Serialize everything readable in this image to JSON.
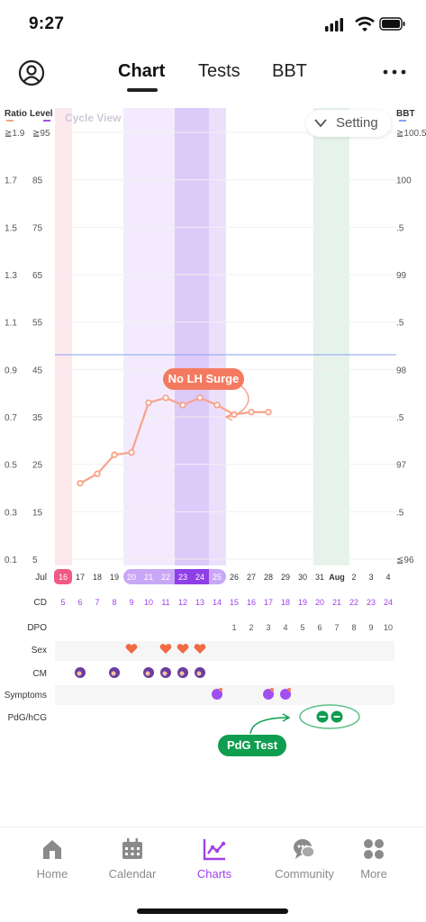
{
  "status": {
    "time": "9:27"
  },
  "tabs": [
    {
      "label": "Chart",
      "active": true
    },
    {
      "label": "Tests",
      "active": false
    },
    {
      "label": "BBT",
      "active": false
    }
  ],
  "chart": {
    "cycle_view_label": "Cycle View",
    "setting_label": "Setting",
    "ratio_label": "Ratio",
    "level_label": "Level",
    "bbt_label": "BBT",
    "ratio_ticks": [
      "≧1.9",
      "1.7",
      "1.5",
      "1.3",
      "1.1",
      "0.9",
      "0.7",
      "0.5",
      "0.3",
      "0.1"
    ],
    "level_ticks": [
      "≧95",
      "85",
      "75",
      "65",
      "55",
      "45",
      "35",
      "25",
      "15",
      "5"
    ],
    "bbt_ticks": [
      "≧100.5",
      "100",
      ".5",
      "99",
      ".5",
      "98",
      ".5",
      "97",
      ".5",
      "≦96"
    ],
    "colors": {
      "ratio": "#f7a38a",
      "level": "#a050f0",
      "bbt": "#8aa0f0",
      "accent": "#a040e8",
      "lh_surge_badge": "#f47a5f",
      "pdg_badge": "#0f9d50"
    },
    "no_lh_surge_label": "No LH Surge",
    "pdg_test_label": "PdG Test"
  },
  "chart_data": {
    "type": "line",
    "title": "",
    "xlabel": "",
    "ylabel": "Level",
    "ylim": [
      5,
      95
    ],
    "x": [
      "Jul 17",
      "Jul 18",
      "Jul 19",
      "Jul 20",
      "Jul 21",
      "Jul 22",
      "Jul 23",
      "Jul 24",
      "Jul 25",
      "Jul 26",
      "Jul 27",
      "Jul 28"
    ],
    "series": [
      {
        "name": "Level",
        "values": [
          21,
          23,
          27,
          27.5,
          38,
          39,
          37.5,
          39,
          37.5,
          35.5,
          36,
          36
        ]
      }
    ]
  },
  "timeline": {
    "month_label": "Jul",
    "month2_label": "Aug",
    "dates": [
      "16",
      "17",
      "18",
      "19",
      "20",
      "21",
      "22",
      "23",
      "24",
      "25",
      "26",
      "27",
      "28",
      "29",
      "30",
      "31",
      "Aug",
      "2",
      "3",
      "4"
    ],
    "cd_label": "CD",
    "cd": [
      "5",
      "6",
      "7",
      "8",
      "9",
      "10",
      "11",
      "12",
      "13",
      "14",
      "15",
      "16",
      "17",
      "18",
      "19",
      "20",
      "21",
      "22",
      "23",
      "24"
    ],
    "dpo_label": "DPO",
    "dpo": [
      "",
      "",
      "",
      "",
      "",
      "",
      "",
      "",
      "",
      "",
      "1",
      "2",
      "3",
      "4",
      "5",
      "6",
      "7",
      "8",
      "9",
      "10"
    ],
    "sex_label": "Sex",
    "cm_label": "CM",
    "symptoms_label": "Symptoms",
    "pdg_label": "PdG/hCG"
  },
  "nav": [
    {
      "label": "Home",
      "icon": "home-icon",
      "active": false
    },
    {
      "label": "Calendar",
      "icon": "calendar-icon",
      "active": false
    },
    {
      "label": "Charts",
      "icon": "charts-icon",
      "active": true
    },
    {
      "label": "Community",
      "icon": "community-icon",
      "active": false
    },
    {
      "label": "More",
      "icon": "more-grid-icon",
      "active": false
    }
  ]
}
